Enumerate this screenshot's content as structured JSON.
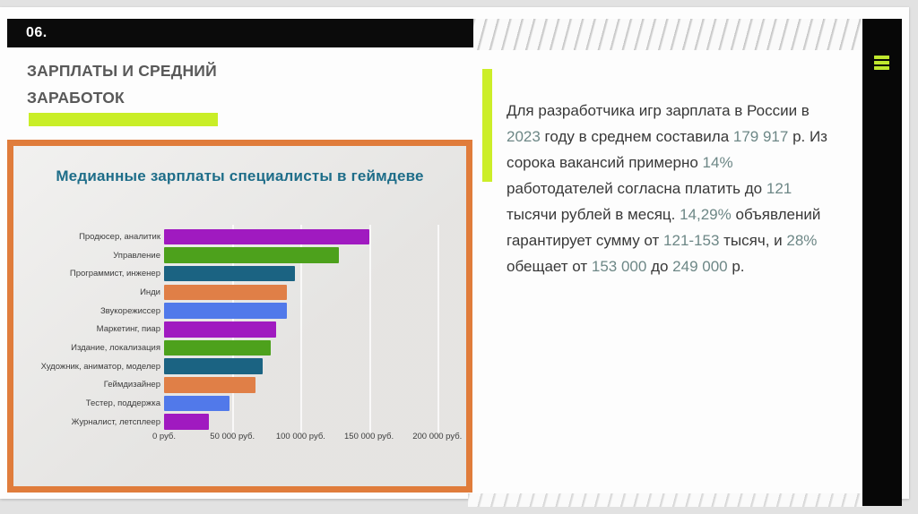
{
  "page": {
    "slide_number": "06.",
    "title_lines": [
      "ЗАРПЛАТЫ И СРЕДНИЙ",
      "ЗАРАБОТОК"
    ]
  },
  "menu": {
    "icon": "hamburger-icon"
  },
  "colors": {
    "accent_green": "#c9ee27",
    "orange_border": "#e07c3b",
    "chart_title_teal": "#1e6d89",
    "number_text_teal": "#6d8786",
    "body_text": "#383838",
    "bar_purple": "#a01ac0",
    "bar_green": "#4da11c",
    "bar_teal": "#1b6382",
    "bar_orange": "#e07f47",
    "bar_blue": "#5179ea"
  },
  "chart_data": {
    "type": "bar",
    "orientation": "horizontal",
    "title": "Медианные зарплаты специалисты в геймдеве",
    "categories": [
      "Продюсер, аналитик",
      "Управление",
      "Программист, инженер",
      "Инди",
      "Звукорежиссер",
      "Маркетинг, пиар",
      "Издание, локализация",
      "Художник, аниматор, моделер",
      "Геймдизайнер",
      "Тестер, поддержка",
      "Журналист, летсплеер"
    ],
    "values": [
      150000,
      128000,
      96000,
      90000,
      90000,
      82000,
      78000,
      72000,
      67000,
      48000,
      33000
    ],
    "bar_colors": [
      "#a01ac0",
      "#4da11c",
      "#1b6382",
      "#e07f47",
      "#5179ea",
      "#a01ac0",
      "#4da11c",
      "#1b6382",
      "#e07f47",
      "#5179ea",
      "#a01ac0"
    ],
    "x_ticks": [
      {
        "value": 0,
        "label": "0 руб."
      },
      {
        "value": 50000,
        "label": "50 000 руб."
      },
      {
        "value": 100000,
        "label": "100 000 руб."
      },
      {
        "value": 150000,
        "label": "150 000 руб."
      },
      {
        "value": 200000,
        "label": "200 000 руб."
      }
    ],
    "xlim": [
      0,
      210000
    ],
    "grid": true,
    "legend": false,
    "unit": "руб."
  },
  "info": {
    "segments": [
      {
        "t": "Для разработчика игр зарплата в России в ",
        "n": false
      },
      {
        "t": "2023",
        "n": true
      },
      {
        "t": " году в среднем составила ",
        "n": false
      },
      {
        "t": "179 917",
        "n": true
      },
      {
        "t": " р. Из сорока вакансий примерно ",
        "n": false
      },
      {
        "t": "14%",
        "n": true
      },
      {
        "t": " работодателей согласна платить до ",
        "n": false
      },
      {
        "t": "121",
        "n": true
      },
      {
        "t": " тысячи рублей в месяц. ",
        "n": false
      },
      {
        "t": "14,29%",
        "n": true
      },
      {
        "t": " объявлений гарантирует сумму от ",
        "n": false
      },
      {
        "t": "121-153",
        "n": true
      },
      {
        "t": " тысяч, и ",
        "n": false
      },
      {
        "t": "28%",
        "n": true
      },
      {
        "t": " обещает от ",
        "n": false
      },
      {
        "t": "153 000",
        "n": true
      },
      {
        "t": " до ",
        "n": false
      },
      {
        "t": "249 000",
        "n": true
      },
      {
        "t": " р.",
        "n": false
      }
    ]
  }
}
